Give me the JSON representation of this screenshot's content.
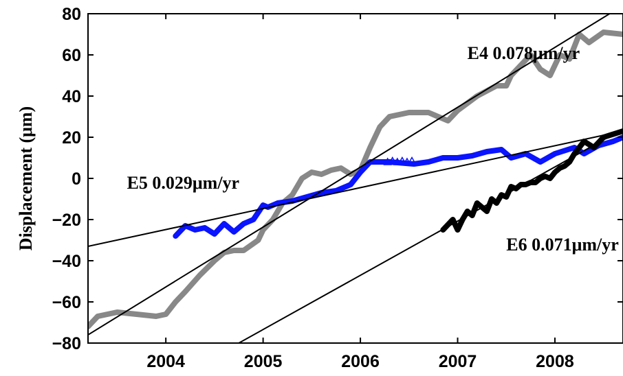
{
  "chart_data": {
    "type": "line",
    "title": "",
    "xlabel": "",
    "ylabel": "Displacement (μm)",
    "xlim": [
      2003.2,
      2008.7
    ],
    "ylim": [
      -80,
      80
    ],
    "xticks": [
      2004,
      2005,
      2006,
      2007,
      2008
    ],
    "xtick_labels": [
      "2004",
      "2005",
      "2006",
      "2007",
      "2008"
    ],
    "yticks": [
      -80,
      -60,
      -40,
      -20,
      0,
      20,
      40,
      60,
      80
    ],
    "ytick_labels": [
      "−80",
      "−60",
      "−40",
      "−20",
      "0",
      "20",
      "40",
      "60",
      "80"
    ],
    "grid": false,
    "series": [
      {
        "color": "#888888",
        "style": "thick-line",
        "x": [
          2003.2,
          2003.3,
          2003.5,
          2003.7,
          2003.9,
          2004.0,
          2004.1,
          2004.2,
          2004.35,
          2004.5,
          2004.6,
          2004.7,
          2004.8,
          2004.95,
          2005.0,
          2005.1,
          2005.2,
          2005.3,
          2005.4,
          2005.5,
          2005.6,
          2005.7,
          2005.8,
          2005.9,
          2006.0,
          2006.1,
          2006.2,
          2006.3,
          2006.5,
          2006.7,
          2006.9,
          2007.0,
          2007.2,
          2007.4,
          2007.5,
          2007.55,
          2007.65,
          2007.75,
          2007.85,
          2007.95,
          2008.05,
          2008.15,
          2008.25,
          2008.35,
          2008.5,
          2008.7
        ],
        "y": [
          -72,
          -67,
          -65,
          -66,
          -67,
          -66,
          -60,
          -55,
          -47,
          -40,
          -36,
          -35,
          -35,
          -30,
          -25,
          -20,
          -12,
          -8,
          0,
          3,
          2,
          4,
          5,
          2,
          4,
          15,
          25,
          30,
          32,
          32,
          28,
          33,
          40,
          45,
          45,
          50,
          55,
          60,
          53,
          50,
          60,
          58,
          70,
          66,
          71,
          70
        ]
      },
      {
        "color": "#0a14ff",
        "style": "thick-line",
        "x": [
          2004.1,
          2004.2,
          2004.3,
          2004.4,
          2004.5,
          2004.6,
          2004.7,
          2004.8,
          2004.9,
          2005.0,
          2005.05,
          2005.15,
          2005.3,
          2005.45,
          2005.6,
          2005.75,
          2005.9,
          2006.0,
          2006.1,
          2006.2,
          2006.3,
          2006.55,
          2006.7,
          2006.85,
          2007.0,
          2007.15,
          2007.3,
          2007.45,
          2007.55,
          2007.7,
          2007.85,
          2008.0,
          2008.2,
          2008.3,
          2008.45,
          2008.6,
          2008.7
        ],
        "y": [
          -28,
          -23,
          -25,
          -24,
          -27,
          -22,
          -26,
          -22,
          -20,
          -13,
          -14,
          -12,
          -11,
          -9,
          -7,
          -6,
          -3,
          3,
          8,
          8,
          8,
          7,
          8,
          10,
          10,
          11,
          13,
          14,
          10,
          12,
          8,
          12,
          15,
          12,
          16,
          18,
          20
        ]
      },
      {
        "color": "#0a14ff",
        "style": "triangle-markers",
        "x": [
          2006.28,
          2006.33,
          2006.38,
          2006.43,
          2006.48,
          2006.53
        ],
        "y": [
          8,
          8.5,
          8,
          8.5,
          8,
          8.5
        ]
      },
      {
        "color": "#000000",
        "style": "thick-line",
        "x": [
          2006.85,
          2006.95,
          2007.0,
          2007.05,
          2007.1,
          2007.15,
          2007.2,
          2007.25,
          2007.3,
          2007.35,
          2007.4,
          2007.45,
          2007.5,
          2007.55,
          2007.6,
          2007.65,
          2007.7,
          2007.75,
          2007.8,
          2007.85,
          2007.9,
          2007.95,
          2008.0,
          2008.05,
          2008.1,
          2008.15,
          2008.2,
          2008.3,
          2008.4,
          2008.5,
          2008.7
        ],
        "y": [
          -25,
          -20,
          -25,
          -20,
          -16,
          -18,
          -12,
          -14,
          -16,
          -10,
          -12,
          -8,
          -9,
          -4,
          -5,
          -3,
          -3,
          -2,
          -2,
          0,
          1,
          0,
          3,
          5,
          6,
          8,
          12,
          18,
          15,
          20,
          23
        ]
      }
    ],
    "fits": [
      {
        "x": [
          2003.2,
          2008.7
        ],
        "y": [
          -76,
          84
        ]
      },
      {
        "x": [
          2003.2,
          2008.7
        ],
        "y": [
          -33,
          23
        ]
      },
      {
        "x": [
          2004.75,
          2008.7
        ],
        "y": [
          -80,
          24
        ]
      }
    ],
    "annotations": [
      {
        "text": "E4 0.078μm/yr",
        "x": 2007.1,
        "y": 58
      },
      {
        "text": "E5 0.029μm/yr",
        "x": 2003.6,
        "y": -5
      },
      {
        "text": "E6 0.071μm/yr",
        "x": 2007.5,
        "y": -35
      }
    ]
  }
}
